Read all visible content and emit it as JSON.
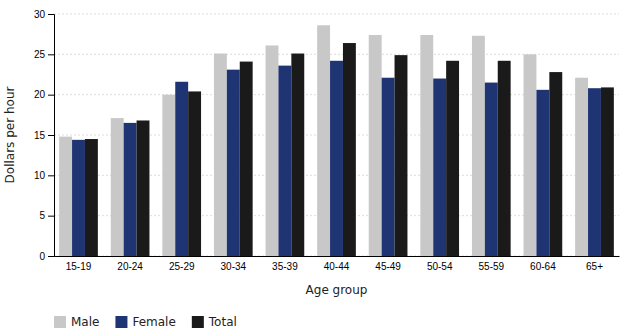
{
  "chart_data": {
    "type": "bar",
    "xlabel": "Age group",
    "ylabel": "Dollars per hour",
    "categories": [
      "15-19",
      "20-24",
      "25-29",
      "30-34",
      "35-39",
      "40-44",
      "45-49",
      "50-54",
      "55-59",
      "60-64",
      "65+"
    ],
    "series": [
      {
        "name": "Male",
        "color": "#c8c8c8",
        "values": [
          14.8,
          17.1,
          20.0,
          25.1,
          26.1,
          28.6,
          27.4,
          27.4,
          27.3,
          25.0,
          22.1
        ]
      },
      {
        "name": "Female",
        "color": "#1f3472",
        "values": [
          14.4,
          16.5,
          21.6,
          23.1,
          23.6,
          24.2,
          22.1,
          22.0,
          21.5,
          20.6,
          20.8
        ]
      },
      {
        "name": "Total",
        "color": "#1a1a1a",
        "values": [
          14.5,
          16.8,
          20.4,
          24.1,
          25.1,
          26.4,
          24.9,
          24.2,
          24.2,
          22.8,
          20.9
        ]
      }
    ],
    "ylim": [
      0,
      30
    ],
    "yticks": [
      0,
      5,
      10,
      15,
      20,
      25,
      30
    ],
    "grid": true,
    "legend": "bottom"
  }
}
